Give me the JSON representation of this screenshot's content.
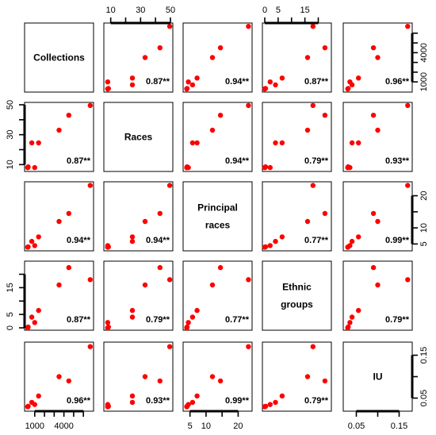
{
  "chart_data": {
    "type": "scatter",
    "variables": [
      {
        "key": "collections",
        "label_lines": [
          "Collections"
        ]
      },
      {
        "key": "races",
        "label_lines": [
          "Races"
        ]
      },
      {
        "key": "principal_races",
        "label_lines": [
          "Principal",
          "races"
        ]
      },
      {
        "key": "ethnic_groups",
        "label_lines": [
          "Ethnic",
          "groups"
        ]
      },
      {
        "key": "iu",
        "label_lines": [
          "IU"
        ]
      }
    ],
    "ranges": {
      "collections": [
        200,
        6800
      ],
      "races": [
        7,
        50
      ],
      "principal_races": [
        3.6,
        23.6
      ],
      "ethnic_groups": [
        0,
        24
      ],
      "iu": [
        0.025,
        0.175
      ]
    },
    "ticks": {
      "collections": [
        1000,
        4000
      ],
      "races": [
        10,
        30,
        50
      ],
      "principal_races": [
        5,
        10,
        20
      ],
      "ethnic_groups": [
        0,
        5,
        15
      ],
      "iu": [
        0.05,
        0.15
      ]
    },
    "tick_labels": {
      "collections": [
        "1000",
        "4000"
      ],
      "races": [
        "10",
        "30",
        "50"
      ],
      "principal_races": [
        "5",
        "10",
        "20"
      ],
      "ethnic_groups": [
        "0",
        "5",
        "15"
      ],
      "iu": [
        "0.05",
        "0.15"
      ]
    },
    "minor_ticks": {
      "collections": [
        1000,
        2000,
        3000,
        4000,
        5000,
        6000
      ],
      "races": [
        10,
        20,
        30,
        40,
        50
      ],
      "principal_races": [
        5,
        10,
        15,
        20
      ],
      "ethnic_groups": [
        0,
        5,
        10,
        15,
        20
      ],
      "iu": [
        0.05,
        0.1,
        0.15
      ]
    },
    "points": [
      {
        "collections": 280,
        "races": 8,
        "principal_races": 4,
        "ethnic_groups": 0,
        "iu": 0.03
      },
      {
        "collections": 280,
        "races": 8,
        "principal_races": 4,
        "ethnic_groups": 0,
        "iu": 0.03
      },
      {
        "collections": 320,
        "races": 8.5,
        "principal_races": 4.1,
        "ethnic_groups": 0.3,
        "iu": 0.031
      },
      {
        "collections": 1000,
        "races": 8,
        "principal_races": 4.5,
        "ethnic_groups": 2,
        "iu": 0.035
      },
      {
        "collections": 700,
        "races": 24.5,
        "principal_races": 5.8,
        "ethnic_groups": 4,
        "iu": 0.04
      },
      {
        "collections": 1400,
        "races": 24.5,
        "principal_races": 7.2,
        "ethnic_groups": 6.5,
        "iu": 0.055
      },
      {
        "collections": 3500,
        "races": 33,
        "principal_races": 12,
        "ethnic_groups": 16,
        "iu": 0.1
      },
      {
        "collections": 4500,
        "races": 43,
        "principal_races": 14.5,
        "ethnic_groups": 22.5,
        "iu": 0.09
      },
      {
        "collections": 6700,
        "races": 49.5,
        "principal_races": 23.2,
        "ethnic_groups": 18,
        "iu": 0.17
      }
    ],
    "correlation_labels": {
      "0-1": "0.87**",
      "0-2": "0.94**",
      "0-3": "0.87**",
      "0-4": "0.96**",
      "1-2": "0.94**",
      "1-3": "0.79**",
      "1-4": "0.93**",
      "2-3": "0.77**",
      "2-4": "0.99**",
      "3-4": "0.79**"
    },
    "marker_color": "#ff0000",
    "axes_layout": {
      "collections": "bottom",
      "races": "top and left",
      "principal_races": "right and bottom",
      "ethnic_groups": "top and left",
      "iu": "right and bottom"
    }
  }
}
